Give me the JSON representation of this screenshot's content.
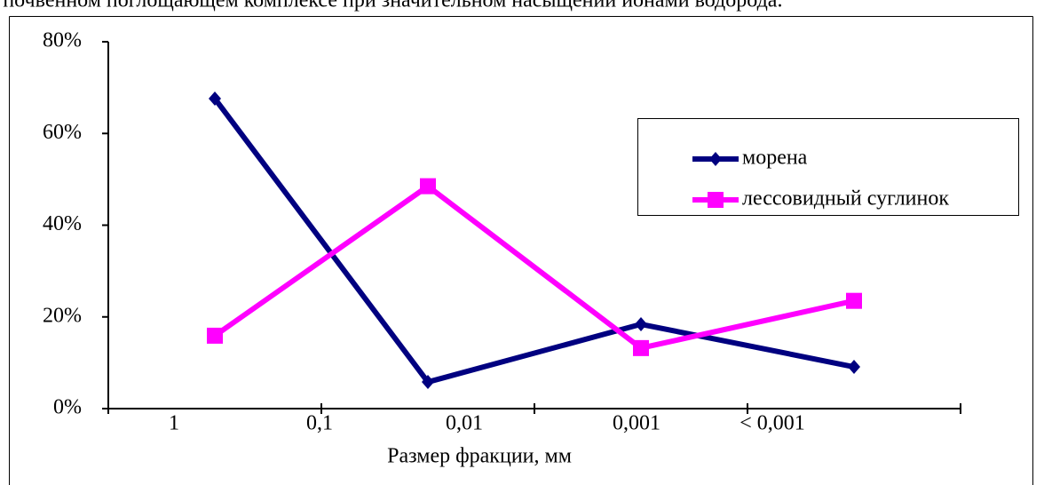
{
  "page_text": "в почвенном поглощающем комплексе при значительном насыщении ионами водорода.",
  "chart_data": {
    "type": "line",
    "x_axis_label": "Размер фракции, мм",
    "x_boundary_labels": [
      "1",
      "0,1",
      "0,01",
      "0,001",
      "< 0,001"
    ],
    "categories": [
      null,
      null,
      null,
      null
    ],
    "series": [
      {
        "name": "морена",
        "color": "#000080",
        "marker": "diamond",
        "values": [
          67.6,
          5.8,
          18.4,
          9.1
        ]
      },
      {
        "name": "лессовидный суглинок",
        "color": "#ff00ff",
        "marker": "square",
        "values": [
          15.9,
          48.5,
          13.2,
          23.5
        ]
      }
    ],
    "ylim": [
      0,
      80
    ],
    "yticks": [
      {
        "value": 0,
        "label": "0%"
      },
      {
        "value": 20,
        "label": "20%"
      },
      {
        "value": 40,
        "label": "40%"
      },
      {
        "value": 60,
        "label": "60%"
      },
      {
        "value": 80,
        "label": "80%"
      }
    ],
    "legend": "right"
  }
}
